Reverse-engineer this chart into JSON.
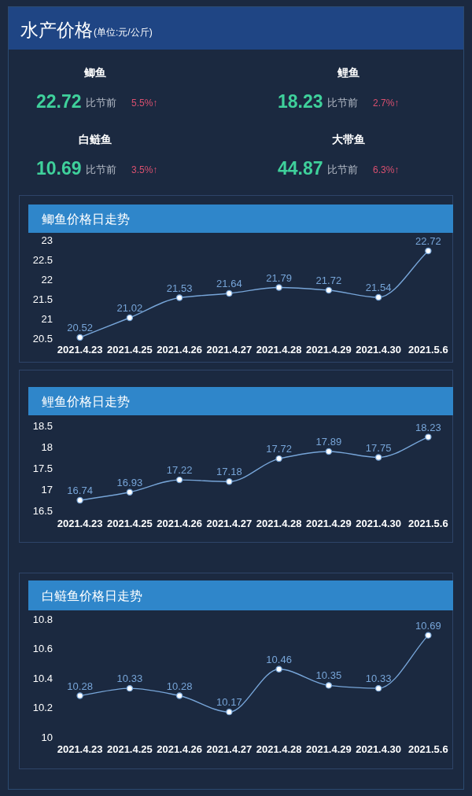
{
  "chart_data": [
    {
      "type": "other",
      "title": "水产价格",
      "subtitle": "(单位:元/公斤)",
      "annotations": [
        "鲫鱼",
        "22.72",
        "比节前",
        "5.5%↑",
        "鲤鱼",
        "18.23",
        "比节前",
        "2.7%↑",
        "白鲢鱼",
        "10.69",
        "比节前",
        "3.5%↑",
        "大带鱼",
        "44.87",
        "比节前",
        "6.3%↑"
      ]
    },
    {
      "type": "line",
      "title": "鲫鱼价格日走势",
      "categories": [
        "2021.4.23",
        "2021.4.25",
        "2021.4.26",
        "2021.4.27",
        "2021.4.28",
        "2021.4.29",
        "2021.4.30",
        "2021.5.6"
      ],
      "series": [
        {
          "color": "#77a5d8",
          "values": [
            20.52,
            21.02,
            21.53,
            21.64,
            21.79,
            21.72,
            21.54,
            22.72
          ]
        }
      ],
      "ylim": [
        20.5,
        23
      ],
      "yticks": [
        20.5,
        21,
        21.5,
        22,
        22.5,
        23
      ],
      "marker": "circle",
      "data_labels": true
    },
    {
      "type": "line",
      "title": "鲤鱼价格日走势",
      "categories": [
        "2021.4.23",
        "2021.4.25",
        "2021.4.26",
        "2021.4.27",
        "2021.4.28",
        "2021.4.29",
        "2021.4.30",
        "2021.5.6"
      ],
      "series": [
        {
          "color": "#77a5d8",
          "values": [
            16.74,
            16.93,
            17.22,
            17.18,
            17.72,
            17.89,
            17.75,
            18.23
          ]
        }
      ],
      "ylim": [
        16.5,
        18.5
      ],
      "yticks": [
        16.5,
        17,
        17.5,
        18,
        18.5
      ],
      "marker": "circle",
      "data_labels": true
    },
    {
      "type": "line",
      "title": "白鲢鱼价格日走势",
      "categories": [
        "2021.4.23",
        "2021.4.25",
        "2021.4.26",
        "2021.4.27",
        "2021.4.28",
        "2021.4.29",
        "2021.4.30",
        "2021.5.6"
      ],
      "series": [
        {
          "color": "#77a5d8",
          "values": [
            10.28,
            10.33,
            10.28,
            10.17,
            10.46,
            10.35,
            10.33,
            10.69
          ]
        }
      ],
      "ylim": [
        10,
        10.8
      ],
      "yticks": [
        10,
        10.2,
        10.4,
        10.6,
        10.8
      ],
      "marker": "circle",
      "data_labels": true
    }
  ]
}
